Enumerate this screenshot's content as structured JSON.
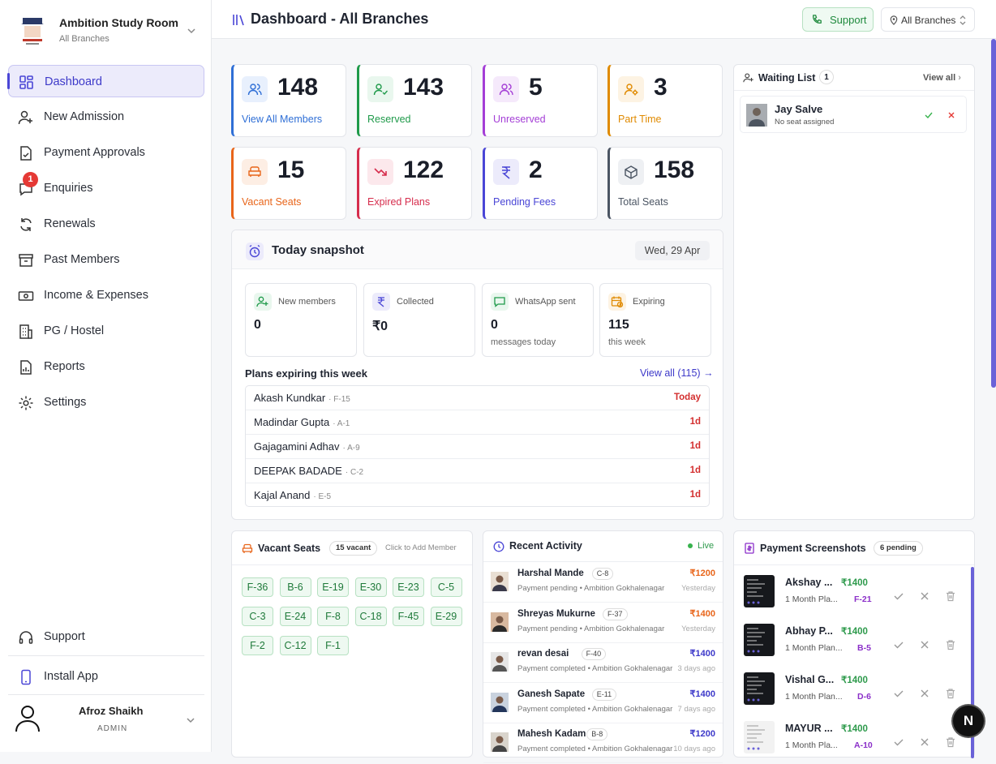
{
  "brand": {
    "title": "Ambition Study Room",
    "subtitle": "All Branches"
  },
  "nav": [
    {
      "label": "Dashboard",
      "icon": "dashboard-icon",
      "active": true
    },
    {
      "label": "New Admission",
      "icon": "user-plus-icon"
    },
    {
      "label": "Payment Approvals",
      "icon": "file-check-icon"
    },
    {
      "label": "Enquiries",
      "icon": "chat-icon",
      "badge": "1"
    },
    {
      "label": "Renewals",
      "icon": "refresh-icon"
    },
    {
      "label": "Past Members",
      "icon": "archive-icon"
    },
    {
      "label": "Income & Expenses",
      "icon": "cash-icon"
    },
    {
      "label": "PG / Hostel",
      "icon": "building-icon"
    },
    {
      "label": "Reports",
      "icon": "report-icon"
    },
    {
      "label": "Settings",
      "icon": "gear-icon"
    }
  ],
  "sidebar_bottom": {
    "support": "Support",
    "install": "Install App"
  },
  "user": {
    "name": "Afroz Shaikh",
    "role": "ADMIN"
  },
  "topbar": {
    "title": "Dashboard - All Branches",
    "support": "Support",
    "branch": "All Branches"
  },
  "stats": [
    {
      "value": "148",
      "label": "View All Members",
      "color": "#2f6fd6"
    },
    {
      "value": "143",
      "label": "Reserved",
      "color": "#1f9a4a"
    },
    {
      "value": "5",
      "label": "Unreserved",
      "color": "#a43ed6"
    },
    {
      "value": "3",
      "label": "Part Time",
      "color": "#e08a00"
    },
    {
      "value": "15",
      "label": "Vacant Seats",
      "color": "#e8651a"
    },
    {
      "value": "122",
      "label": "Expired Plans",
      "color": "#d62d4d"
    },
    {
      "value": "2",
      "label": "Pending Fees",
      "color": "#4a46d6"
    },
    {
      "value": "158",
      "label": "Total Seats",
      "color": "#4b5563"
    }
  ],
  "snapshot": {
    "title": "Today snapshot",
    "date": "Wed, 29 Apr",
    "tiles": [
      {
        "label": "New members",
        "value": "0",
        "sub": ""
      },
      {
        "label": "Collected",
        "value": "₹0",
        "sub": ""
      },
      {
        "label": "WhatsApp sent",
        "value": "0",
        "sub": "messages today"
      },
      {
        "label": "Expiring",
        "value": "115",
        "sub": "this week"
      }
    ],
    "expiring_title": "Plans expiring this week",
    "expiring_link": "View all (115)",
    "expiring": [
      {
        "name": "Akash Kundkar",
        "seat": "· F-15",
        "days": "Today"
      },
      {
        "name": "Madindar Gupta",
        "seat": "· A-1",
        "days": "1d"
      },
      {
        "name": "Gajagamini Adhav",
        "seat": "· A-9",
        "days": "1d"
      },
      {
        "name": "DEEPAK BADADE",
        "seat": "· C-2",
        "days": "1d"
      },
      {
        "name": "Kajal Anand",
        "seat": "· E-5",
        "days": "1d"
      }
    ]
  },
  "waiting": {
    "title": "Waiting List",
    "count": "1",
    "view_all": "View all",
    "items": [
      {
        "name": "Jay Salve",
        "sub": "No seat assigned"
      }
    ]
  },
  "vacant": {
    "title": "Vacant Seats",
    "pill": "15 vacant",
    "hint": "Click to Add Member",
    "seats": [
      "F-36",
      "B-6",
      "E-19",
      "E-30",
      "E-23",
      "C-5",
      "C-3",
      "E-24",
      "F-8",
      "C-18",
      "F-45",
      "E-29",
      "F-2",
      "C-12",
      "F-1"
    ]
  },
  "activity": {
    "title": "Recent Activity",
    "live": "Live",
    "items": [
      {
        "name": "Harshal Mande",
        "seat": "C-8",
        "sub": "Payment pending • Ambition Gokhalenagar",
        "amount": "₹1200",
        "time": "Yesterday",
        "amount_color": "#e8651a"
      },
      {
        "name": "Shreyas Mukurne",
        "seat": "F-37",
        "sub": "Payment pending • Ambition Gokhalenagar",
        "amount": "₹1400",
        "time": "Yesterday",
        "amount_color": "#e8651a"
      },
      {
        "name": "revan desai",
        "seat": "F-40",
        "sub": "Payment completed • Ambition Gokhalenagar",
        "amount": "₹1400",
        "time": "3 days ago",
        "amount_color": "#3d39c9"
      },
      {
        "name": "Ganesh Sapate",
        "seat": "E-11",
        "sub": "Payment completed • Ambition Gokhalenagar",
        "amount": "₹1400",
        "time": "7 days ago",
        "amount_color": "#3d39c9"
      },
      {
        "name": "Mahesh Kadam",
        "seat": "B-8",
        "sub": "Payment completed • Ambition Gokhalenagar",
        "amount": "₹1200",
        "time": "10 days ago",
        "amount_color": "#3d39c9"
      }
    ]
  },
  "payments": {
    "title": "Payment Screenshots",
    "pill": "6 pending",
    "items": [
      {
        "name": "Akshay ...",
        "amount": "₹1400",
        "plan": "1 Month Pla...",
        "seat": "F-21"
      },
      {
        "name": "Abhay P...",
        "amount": "₹1400",
        "plan": "1 Month Plan...",
        "seat": "B-5"
      },
      {
        "name": "Vishal G...",
        "amount": "₹1400",
        "plan": "1 Month Plan...",
        "seat": "D-6"
      },
      {
        "name": "MAYUR ...",
        "amount": "₹1400",
        "plan": "1 Month Pla...",
        "seat": "A-10"
      }
    ]
  },
  "fab": "N"
}
